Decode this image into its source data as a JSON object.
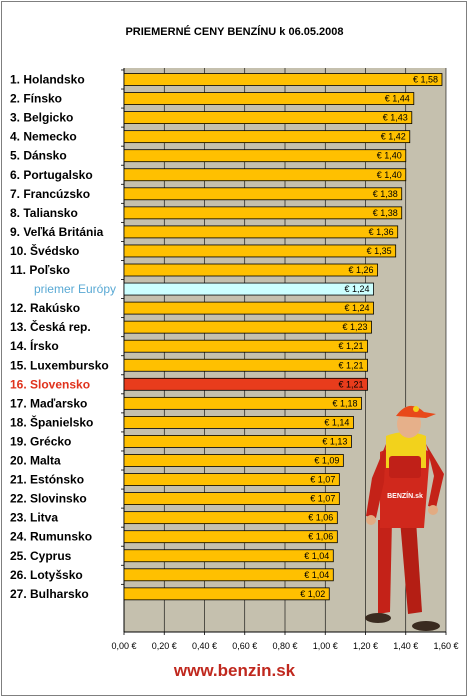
{
  "chart_data": {
    "type": "bar",
    "orientation": "horizontal",
    "title": "PRIEMERNÉ CENY BENZÍNU k 06.05.2008",
    "categories": [
      "1. Holandsko",
      "2. Fínsko",
      "3. Belgicko",
      "4. Nemecko",
      "5. Dánsko",
      "6. Portugalsko",
      "7. Francúzsko",
      "8. Taliansko",
      "9. Veľká Británia",
      "10. Švédsko",
      "11. Poľsko",
      "priemer Európy",
      "12. Rakúsko",
      "13. Česká rep.",
      "14. Írsko",
      "15. Luxembursko",
      "16. Slovensko",
      "17. Maďarsko",
      "18. Španielsko",
      "19. Grécko",
      "20. Malta",
      "21. Estónsko",
      "22. Slovinsko",
      "23. Litva",
      "24. Rumunsko",
      "25. Cyprus",
      "26. Lotyšsko",
      "27. Bulharsko"
    ],
    "values": [
      1.58,
      1.44,
      1.43,
      1.42,
      1.4,
      1.4,
      1.38,
      1.38,
      1.36,
      1.35,
      1.26,
      1.24,
      1.24,
      1.23,
      1.21,
      1.21,
      1.21,
      1.18,
      1.14,
      1.13,
      1.09,
      1.07,
      1.07,
      1.06,
      1.06,
      1.04,
      1.04,
      1.02
    ],
    "value_labels": [
      "€ 1,58",
      "€ 1,44",
      "€ 1,43",
      "€ 1,42",
      "€ 1,40",
      "€ 1,40",
      "€ 1,38",
      "€ 1,38",
      "€ 1,36",
      "€ 1,35",
      "€ 1,26",
      "€ 1,24",
      "€ 1,24",
      "€ 1,23",
      "€ 1,21",
      "€ 1,21",
      "€ 1,21",
      "€ 1,18",
      "€ 1,14",
      "€ 1,13",
      "€ 1,09",
      "€ 1,07",
      "€ 1,07",
      "€ 1,06",
      "€ 1,06",
      "€ 1,04",
      "€ 1,04",
      "€ 1,02"
    ],
    "highlight": {
      "average_index": 11,
      "home_index": 16
    },
    "xlim": [
      0,
      1.6
    ],
    "xticks": [
      0,
      0.2,
      0.4,
      0.6,
      0.8,
      1.0,
      1.2,
      1.4,
      1.6
    ],
    "xtick_labels": [
      "0,00 €",
      "0,20 €",
      "0,40 €",
      "0,60 €",
      "0,80 €",
      "1,00 €",
      "1,20 €",
      "1,40 €",
      "1,60 €"
    ],
    "grid": true,
    "legend": "none",
    "colors": {
      "bar": "#ffc000",
      "bar_border": "#000000",
      "average_bar": "#ccffff",
      "home_bar": "#e83c1c",
      "plot_background": "#c5c0ae",
      "gridline": "#000000",
      "average_label": "#59a9d4",
      "home_label": "#e0321c",
      "footer": "#c0281e"
    }
  },
  "mascot": {
    "icon": "gas-station-mascot-icon",
    "badge_text": "BENZÍN.sk"
  },
  "footer": {
    "text": "www.benzin.sk"
  }
}
